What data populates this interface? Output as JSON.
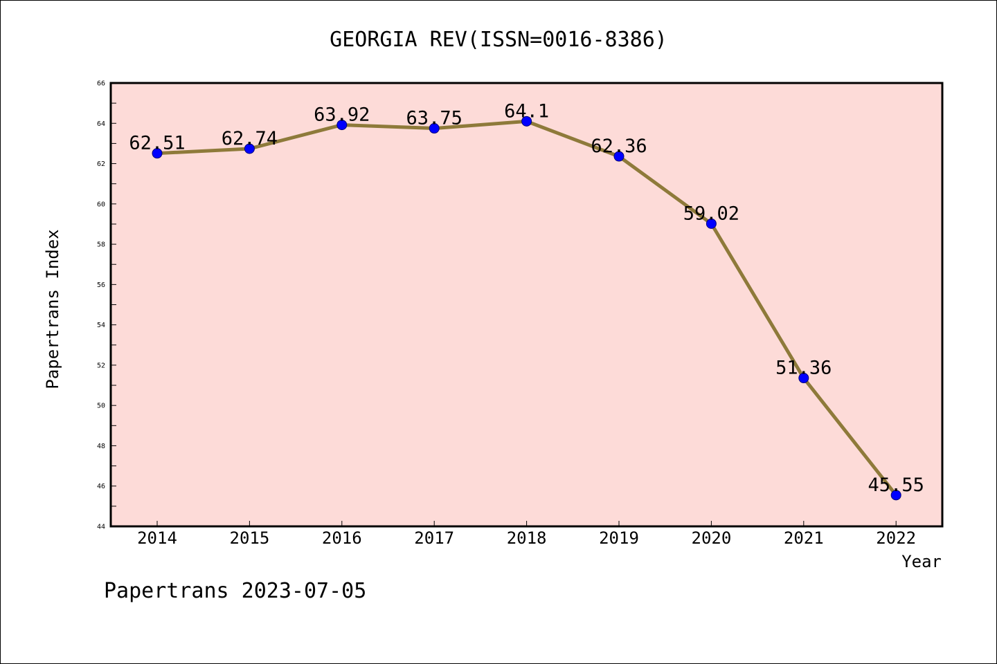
{
  "chart_data": {
    "type": "line",
    "title": "GEORGIA REV(ISSN=0016-8386)",
    "xlabel": "Year",
    "ylabel": "Papertrans Index",
    "x": [
      "2014",
      "2015",
      "2016",
      "2017",
      "2018",
      "2019",
      "2020",
      "2021",
      "2022"
    ],
    "series": [
      {
        "values": [
          62.51,
          62.74,
          63.92,
          63.75,
          64.1,
          62.36,
          59.02,
          51.36,
          45.55
        ],
        "labels": [
          "62.51",
          "62.74",
          "63.92",
          "63.75",
          "64.1",
          "62.36",
          "59.02",
          "51.36",
          "45.55"
        ]
      }
    ],
    "ylim": [
      44,
      66
    ],
    "yticks": [
      "44",
      "46",
      "48",
      "50",
      "52",
      "54",
      "56",
      "58",
      "60",
      "62",
      "64",
      "66"
    ],
    "grid": false,
    "legend": "none",
    "colors": {
      "plot_background": "#fddbd8",
      "line": "#8e7a3a",
      "marker": "#0000ff"
    }
  },
  "footer": "Papertrans 2023-07-05"
}
